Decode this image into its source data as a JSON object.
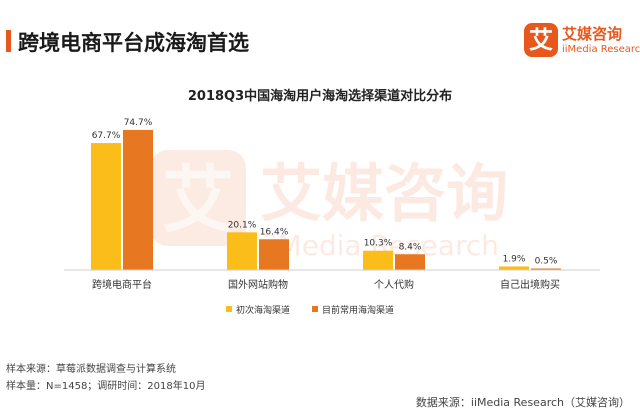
{
  "page_title": "跨境电商平台成海淘首选",
  "logo": {
    "mark": "艾",
    "name_cn": "艾媒咨询",
    "name_en": "iiMedia Research"
  },
  "watermark": {
    "mark": "艾",
    "cn": "艾媒咨询",
    "en": "iiMedia Research"
  },
  "colors": {
    "accent": "#e8581c",
    "series1": "#fbbd1a",
    "series2": "#e87722"
  },
  "chart_data": {
    "type": "bar",
    "title": "2018Q3中国海淘用户海淘选择渠道对比分布",
    "categories": [
      "跨境电商平台",
      "国外网站购物",
      "个人代购",
      "自己出境购买"
    ],
    "series": [
      {
        "name": "初次海淘渠道",
        "values": [
          67.7,
          20.1,
          10.3,
          1.9
        ],
        "labels": [
          "67.7%",
          "20.1%",
          "10.3%",
          "1.9%"
        ]
      },
      {
        "name": "目前常用海淘渠道",
        "values": [
          74.7,
          16.4,
          8.4,
          0.5
        ],
        "labels": [
          "74.7%",
          "16.4%",
          "8.4%",
          "0.5%"
        ]
      }
    ],
    "ylim": [
      0,
      80
    ],
    "grid": false,
    "legend": "bottom-center"
  },
  "footer": {
    "source_line": "样本来源：草莓派数据调查与计算系统",
    "sample_line": "样本量：N=1458；调研时间：2018年10月",
    "data_source": "数据来源：iiMedia Research（艾媒咨询）"
  }
}
